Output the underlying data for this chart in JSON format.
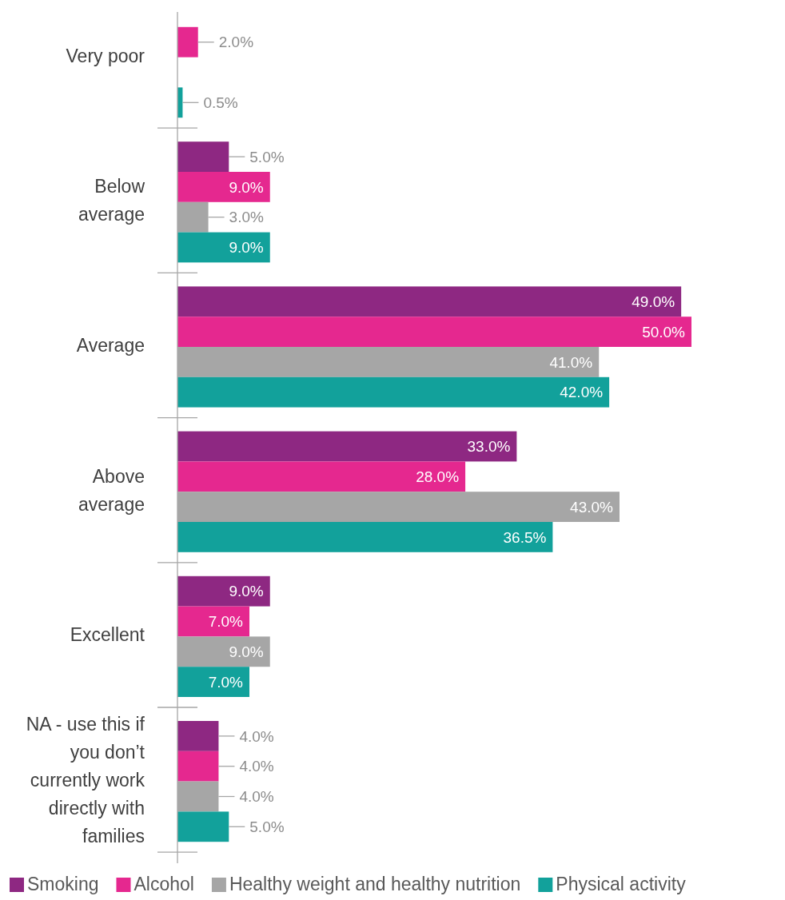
{
  "chart_data": {
    "type": "bar",
    "orientation": "horizontal",
    "categories": [
      "Very poor",
      "Below average",
      "Average",
      "Above average",
      "Excellent",
      "NA - use this if you don’t currently work directly with families"
    ],
    "series": [
      {
        "name": "Smoking",
        "color": "#8e2882",
        "values": [
          null,
          5.0,
          49.0,
          33.0,
          9.0,
          4.0
        ],
        "value_labels": [
          null,
          "5.0%",
          "49.0%",
          "33.0%",
          "9.0%",
          "4.0%"
        ]
      },
      {
        "name": "Alcohol",
        "color": "#e5288f",
        "values": [
          2.0,
          9.0,
          50.0,
          28.0,
          7.0,
          4.0
        ],
        "value_labels": [
          "2.0%",
          "9.0%",
          "50.0%",
          "28.0%",
          "7.0%",
          "4.0%"
        ]
      },
      {
        "name": "Healthy weight and healthy nutrition",
        "color": "#a6a6a6",
        "values": [
          null,
          3.0,
          41.0,
          43.0,
          9.0,
          4.0
        ],
        "value_labels": [
          null,
          "3.0%",
          "41.0%",
          "43.0%",
          "9.0%",
          "4.0%"
        ]
      },
      {
        "name": "Physical activity",
        "color": "#12a19b",
        "values": [
          0.5,
          9.0,
          42.0,
          36.5,
          7.0,
          5.0
        ],
        "value_labels": [
          "0.5%",
          "9.0%",
          "42.0%",
          "36.5%",
          "7.0%",
          "5.0%"
        ]
      }
    ],
    "legend": "bottom"
  }
}
